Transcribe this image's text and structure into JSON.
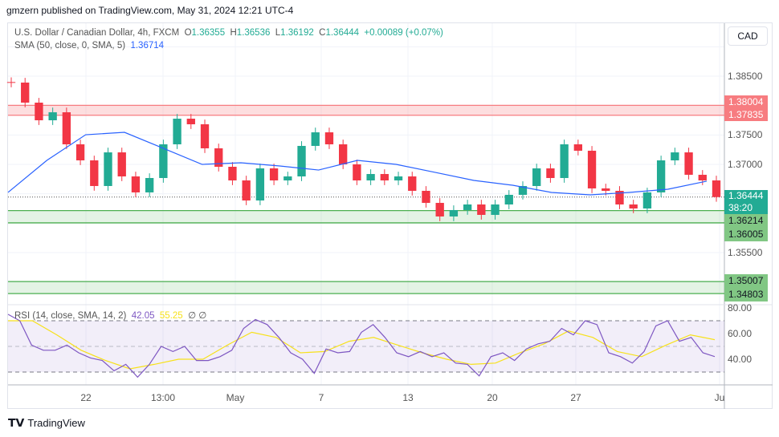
{
  "publisher": "gmzern published on TradingView.com, May 31, 2024 12:21 UTC-4",
  "symbol": {
    "name": "U.S. Dollar / Canadian Dollar, 4h, FXCM",
    "o_label": "O",
    "o": "1.36355",
    "h_label": "H",
    "h": "1.36536",
    "l_label": "L",
    "l": "1.36192",
    "c_label": "C",
    "c": "1.36444",
    "change": "+0.00089 (+0.07%)"
  },
  "sma": {
    "label": "SMA (50, close, 0, SMA, 5)",
    "value": "1.36714"
  },
  "rsi": {
    "label": "RSI (14, close, SMA, 14, 2)",
    "value": "42.05",
    "sma_value": "55.25",
    "extra": "∅ ∅"
  },
  "currency": "CAD",
  "price_labels": [
    "1.38500",
    "1.37500",
    "1.37000",
    "1.35500"
  ],
  "rsi_labels": [
    "80.00",
    "60.00",
    "40.00"
  ],
  "time_labels": [
    "22",
    "13:00",
    "May",
    "7",
    "13",
    "20",
    "27",
    "Ju"
  ],
  "zones": {
    "resistance": {
      "top": "1.38004",
      "bottom": "1.37835"
    },
    "support1": {
      "top": "1.36214",
      "bottom": "1.36005"
    },
    "support2": {
      "top": "1.35007",
      "bottom": "1.34803"
    }
  },
  "last_price": {
    "value": "1.36444",
    "countdown": "38:20"
  },
  "colors": {
    "up": "#22ab94",
    "down": "#f23645",
    "sma": "#2962ff",
    "rsi": "#7e57c2",
    "rsi_sma": "#f7e11a",
    "support": "#4caf50",
    "resistance": "#f77c80"
  },
  "brand": "TradingView",
  "chart_data": {
    "type": "candlestick",
    "ylim": [
      1.346,
      1.3905
    ],
    "closes": [
      1.38391,
      1.3805,
      1.3775,
      1.37886,
      1.37341,
      1.37068,
      1.36632,
      1.37204,
      1.36795,
      1.36523,
      1.36768,
      1.37341,
      1.37777,
      1.37682,
      1.37273,
      1.36959,
      1.36727,
      1.36386,
      1.36932,
      1.36727,
      1.36795,
      1.37314,
      1.37545,
      1.37341,
      1.37,
      1.36727,
      1.36836,
      1.36727,
      1.36795,
      1.3655,
      1.36345,
      1.36114,
      1.36223,
      1.36318,
      1.36141,
      1.36318,
      1.36482,
      1.36632,
      1.36932,
      1.36768,
      1.37341,
      1.37232,
      1.36591,
      1.3655,
      1.36318,
      1.3625,
      1.36523,
      1.37068,
      1.37204,
      1.36823,
      1.36727,
      1.36444
    ],
    "first_open": 1.384,
    "sma50": [
      1.36523,
      1.37068,
      1.37504,
      1.37545,
      1.37273,
      1.37,
      1.37027,
      1.36973,
      1.36904,
      1.37068,
      1.37,
      1.36864,
      1.36727,
      1.36645,
      1.36523,
      1.36482,
      1.36523,
      1.36577,
      1.36714
    ],
    "rsi": [
      75,
      70,
      51,
      47,
      47,
      51,
      45,
      41,
      39,
      31,
      36,
      26,
      36,
      50,
      46,
      50,
      39,
      39,
      42,
      47,
      64,
      71,
      67,
      57,
      45,
      40,
      29,
      48,
      45,
      46,
      61,
      67,
      57,
      45,
      42,
      46,
      42,
      45,
      37,
      36,
      27,
      42,
      45,
      39,
      48,
      52,
      54,
      64,
      59,
      70,
      67,
      45,
      42,
      37,
      46,
      66,
      70,
      54,
      57,
      45,
      42.05
    ],
    "rsi_sma": [
      70,
      70,
      59,
      47,
      39,
      32.5,
      36,
      40,
      40,
      51,
      61,
      57,
      45,
      46,
      54,
      57,
      51,
      45,
      40,
      36,
      37,
      45,
      52,
      62,
      57,
      46,
      42,
      51,
      59,
      55.25
    ],
    "rsi_levels": {
      "upper": 70,
      "middle": 50,
      "lower": 30
    },
    "rsi_ylim": [
      20,
      85
    ]
  }
}
